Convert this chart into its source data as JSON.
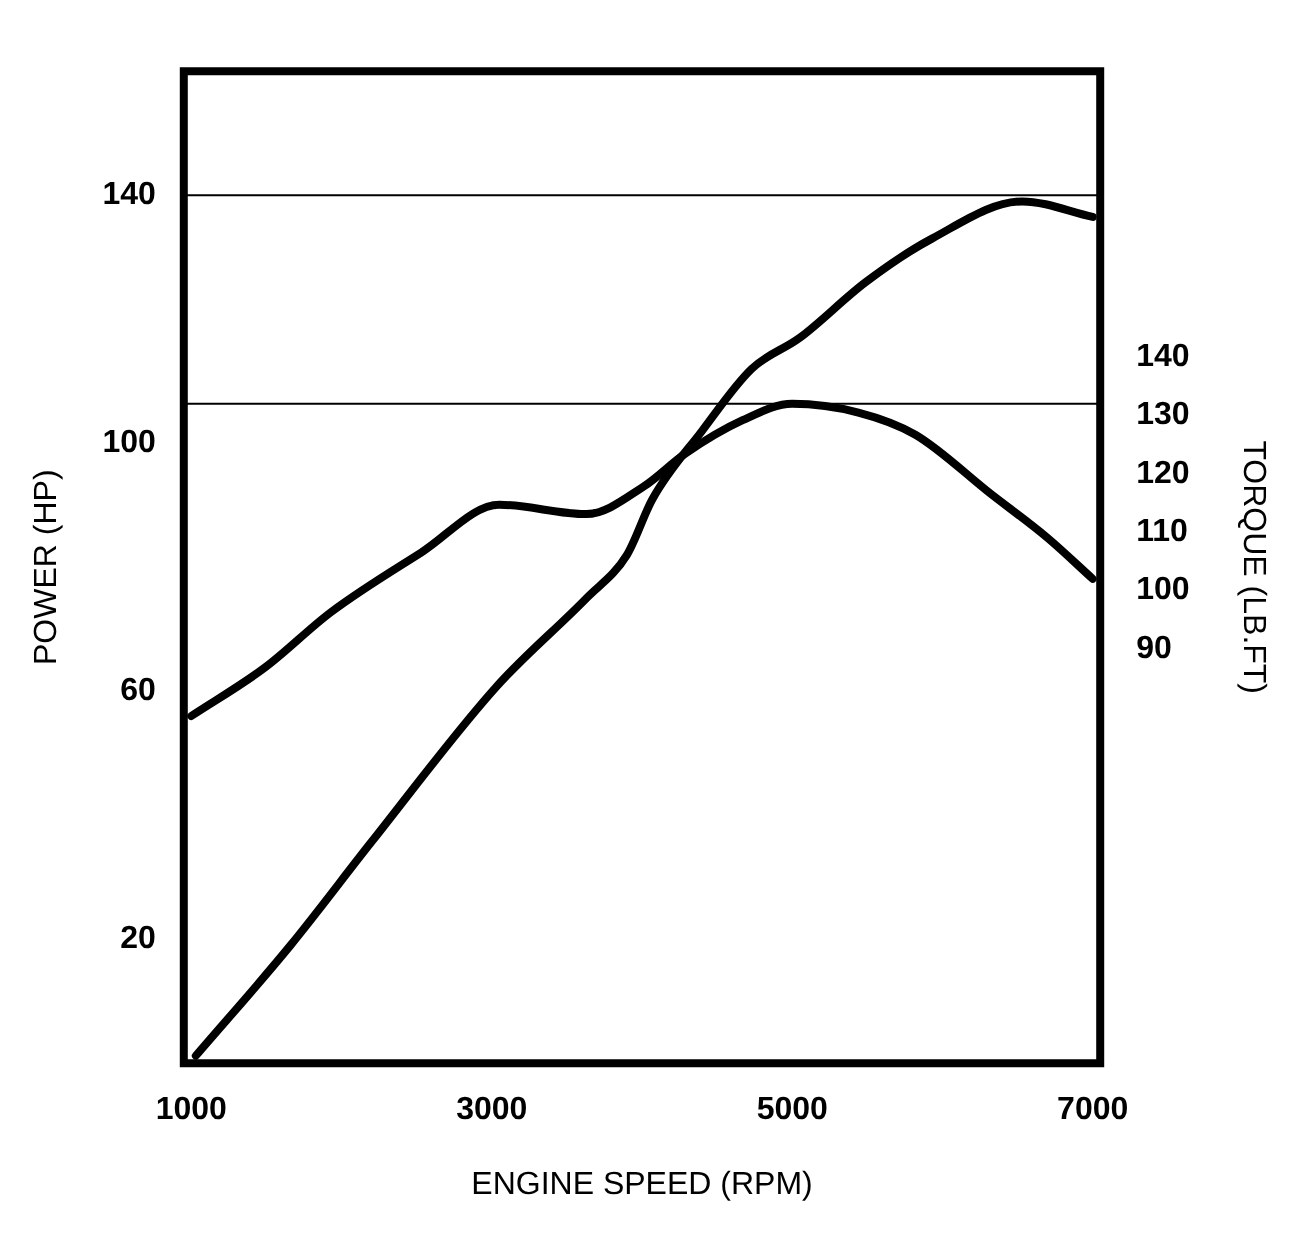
{
  "chart_data": {
    "type": "line",
    "xlabel": "ENGINE SPEED (RPM)",
    "ylabel": "POWER (HP)",
    "y2label": "TORQUE (LB.FT)",
    "xlim": [
      950,
      7050
    ],
    "xticks": [
      1000,
      3000,
      5000,
      7000
    ],
    "ylim": [
      0,
      160
    ],
    "yticks": [
      20,
      60,
      100,
      140
    ],
    "y2lim": [
      19,
      189
    ],
    "y2ticks": [
      90,
      100,
      110,
      120,
      130,
      140
    ],
    "grid": false,
    "ref_lines": [
      {
        "axis": "y",
        "value": 140,
        "color": "#000000"
      },
      {
        "axis": "y2",
        "value": 132,
        "color": "#000000"
      }
    ],
    "series": [
      {
        "color": "#000000",
        "x": [
          1030,
          1660,
          2200,
          3030,
          3630,
          3900,
          4070,
          4400,
          4730,
          5050,
          5490,
          5930,
          6530,
          7000
        ],
        "values": [
          1.2,
          19,
          35.7,
          60.7,
          75,
          82,
          91,
          102,
          112,
          117,
          126,
          133,
          139,
          136.5
        ]
      },
      {
        "color": "#000000",
        "axis": "y2",
        "x": [
          1000,
          1490,
          1930,
          2530,
          3050,
          3630,
          4010,
          4290,
          4670,
          5000,
          5440,
          5820,
          6320,
          6700,
          7000
        ],
        "values": [
          78.5,
          86.8,
          96.3,
          106.5,
          114.7,
          113.1,
          117.8,
          123.5,
          129.2,
          132,
          130.5,
          126.7,
          116.6,
          109,
          102
        ]
      }
    ]
  }
}
